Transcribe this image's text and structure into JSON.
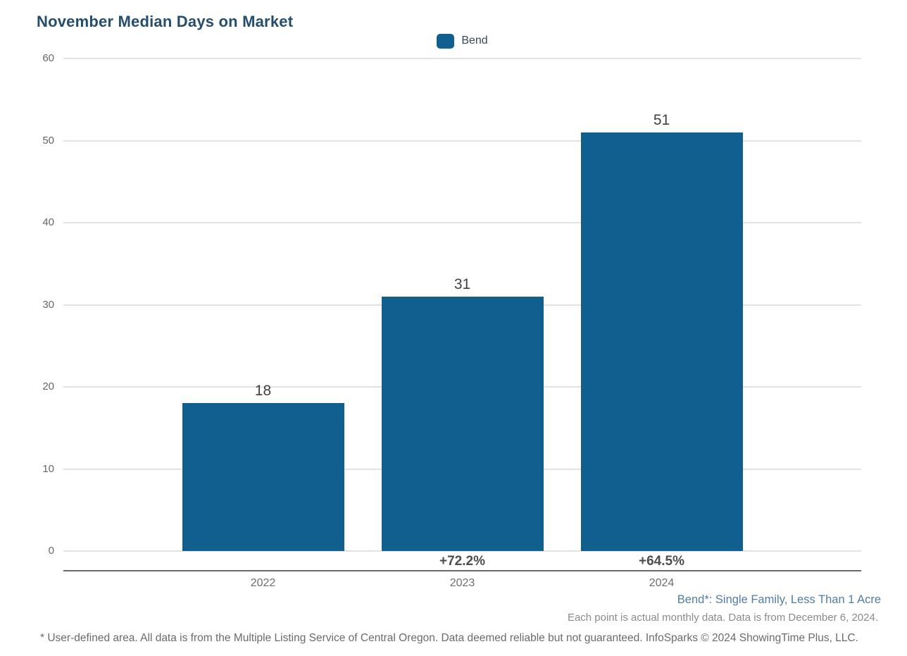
{
  "title": "November Median Days on Market",
  "legend": {
    "label": "Bend"
  },
  "chart_data": {
    "type": "bar",
    "title": "November Median Days on Market",
    "categories": [
      "2022",
      "2023",
      "2024"
    ],
    "values": [
      18,
      31,
      51
    ],
    "value_labels": [
      "18",
      "31",
      "51"
    ],
    "change_labels": [
      "",
      "+72.2%",
      "+64.5%"
    ],
    "series": [
      {
        "name": "Bend",
        "values": [
          18,
          31,
          51
        ]
      }
    ],
    "xlabel": "",
    "ylabel": "",
    "ylim": [
      0,
      60
    ],
    "yticks": [
      0,
      10,
      20,
      30,
      40,
      50,
      60
    ],
    "grid": true,
    "legend_position": "top-center",
    "bar_color": "#105f8e"
  },
  "footnotes": {
    "series_definition": "Bend*: Single Family, Less Than 1 Acre",
    "data_note": "Each point is actual monthly data. Data is from December 6, 2024.",
    "disclaimer": "* User-defined area. All data is from the Multiple Listing Service of Central Oregon. Data deemed reliable but not guaranteed. InfoSparks © 2024 ShowingTime Plus, LLC."
  },
  "colors": {
    "bar": "#105f8e",
    "title": "#254e6e",
    "series_definition_text": "#527da4",
    "gridline": "#e3e3e3",
    "axis_line": "#67696c"
  }
}
